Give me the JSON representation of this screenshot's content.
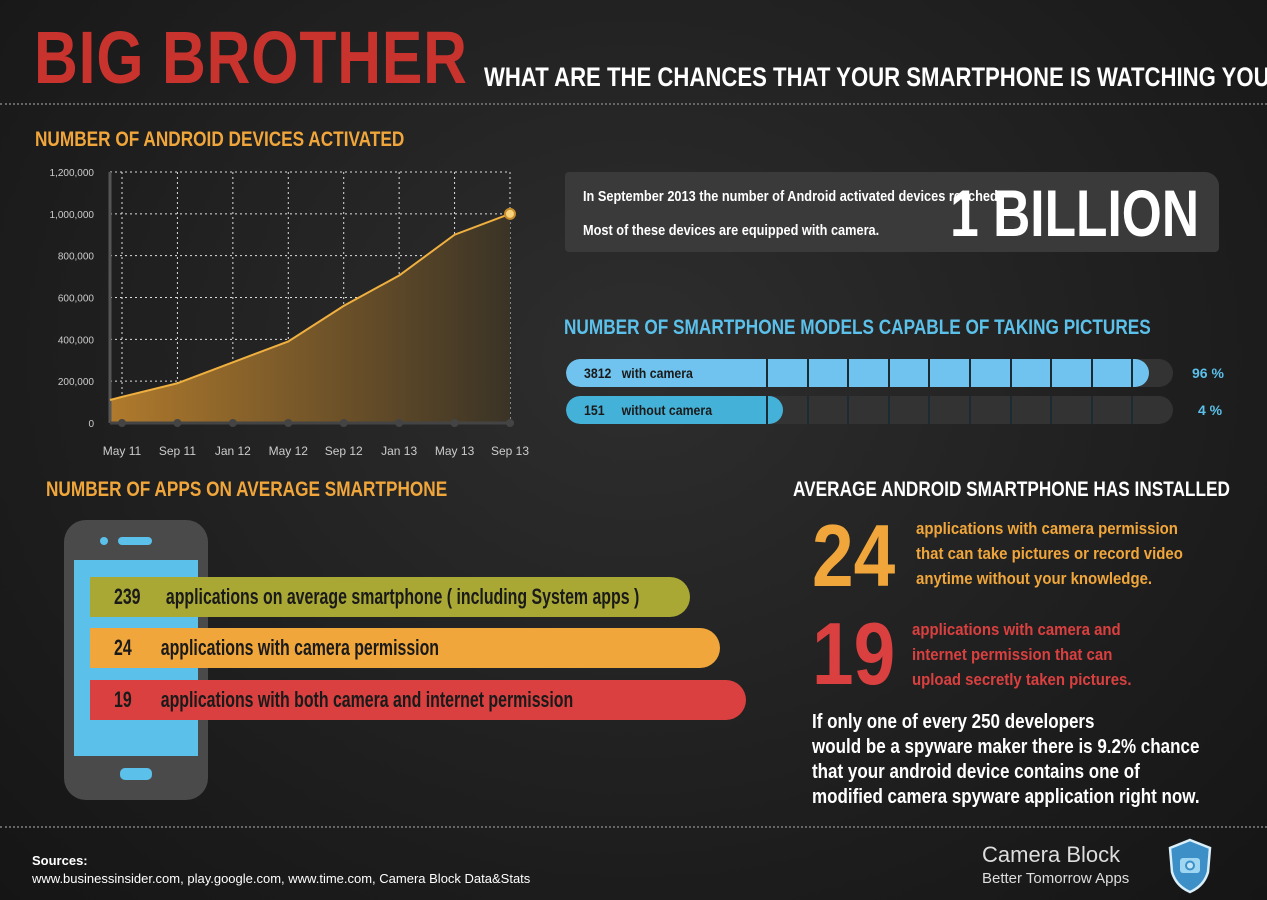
{
  "header": {
    "title": "BIG BROTHER",
    "subtitle": "WHAT ARE THE CHANCES THAT YOUR SMARTPHONE IS WATCHING YOU?"
  },
  "colors": {
    "title_red": "#c8332e",
    "orange": "#f0a63a",
    "blue": "#5bc1ea",
    "olive": "#a9a835",
    "red": "#d9403f",
    "background": "#1f1f1f"
  },
  "chart_data": {
    "type": "area",
    "title": "NUMBER OF ANDROID DEVICES ACTIVATED",
    "categories": [
      "May 11",
      "Sep 11",
      "Jan 12",
      "May 12",
      "Sep 12",
      "Jan 13",
      "May 13",
      "Sep 13"
    ],
    "values": [
      125000,
      190000,
      290000,
      390000,
      560000,
      705000,
      900000,
      1000000
    ],
    "y_ticks": [
      "0",
      "200,000",
      "400,000",
      "600,000",
      "800,000",
      "1,000,000",
      "1,200,000"
    ],
    "ylim": [
      0,
      1200000
    ],
    "grid": true,
    "line_color": "#f0b040"
  },
  "billion": {
    "line1": "In September 2013 the number of Android activated devices reached",
    "line2": "Most of these devices are equipped with camera.",
    "big": "1 BILLION"
  },
  "models": {
    "title": "NUMBER OF SMARTPHONE MODELS CAPABLE OF TAKING PICTURES",
    "bars": [
      {
        "count": "3812",
        "label": "with camera",
        "percent": "96 %",
        "value": 96
      },
      {
        "count": "151",
        "label": "without camera",
        "percent": "4 %",
        "value": 4
      }
    ]
  },
  "apps": {
    "title": "NUMBER OF APPS ON AVERAGE SMARTPHONE",
    "items": [
      {
        "count": "239",
        "label": "applications on average smartphone ( including System apps )"
      },
      {
        "count": "24",
        "label": "applications with camera permission"
      },
      {
        "count": "19",
        "label": "applications with both camera and internet permission"
      }
    ]
  },
  "installed": {
    "title": "AVERAGE ANDROID SMARTPHONE HAS INSTALLED",
    "a": {
      "num": "24",
      "lines": [
        "applications with camera permission",
        "that can take pictures or record video",
        "anytime without your knowledge."
      ]
    },
    "b": {
      "num": "19",
      "lines": [
        "applications with camera and",
        "internet permission that can",
        "upload secretly taken pictures."
      ]
    },
    "chance": [
      "If only one of every 250 developers",
      "would be a spyware maker there is 9.2% chance",
      "that your android device contains one of",
      "modified camera spyware application right now."
    ]
  },
  "footer": {
    "sources_label": "Sources:",
    "sources": "www.businessinsider.com, play.google.com, www.time.com, Camera Block Data&Stats",
    "brand": "Camera Block",
    "tagline": "Better Tomorrow Apps",
    "logo_icon": "shield-camera-icon"
  }
}
